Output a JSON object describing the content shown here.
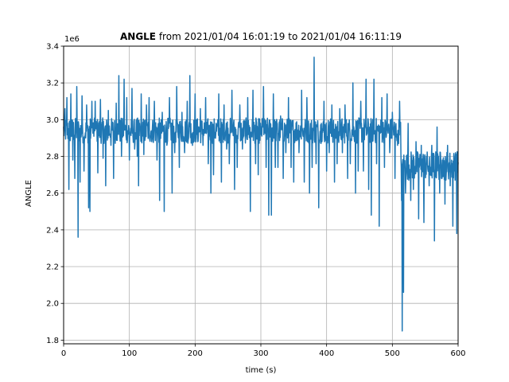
{
  "chart_data": {
    "type": "line",
    "title_bold": "ANGLE",
    "title_rest": " from 2021/01/04 16:01:19 to 2021/01/04 16:11:19",
    "xlabel": "time (s)",
    "ylabel": "ANGLE",
    "y_offset_text": "1e6",
    "xlim": [
      0,
      600
    ],
    "ylim": [
      1.78,
      3.4
    ],
    "xticks": [
      0,
      100,
      200,
      300,
      400,
      500,
      600
    ],
    "yticks": [
      1.8,
      2.0,
      2.2,
      2.4,
      2.6,
      2.8,
      3.0,
      3.2,
      3.4
    ],
    "xtick_labels": [
      "0",
      "100",
      "200",
      "300",
      "400",
      "500",
      "600"
    ],
    "ytick_labels": [
      "1.8",
      "2.0",
      "2.2",
      "2.4",
      "2.6",
      "2.8",
      "3.0",
      "3.2",
      "3.4"
    ],
    "grid": true,
    "color": "#1f77b4",
    "series": [
      {
        "regime": [
          {
            "x_start": 0,
            "x_end": 513,
            "center": 2.94,
            "half_band": 0.07
          },
          {
            "x_start": 513,
            "x_end": 600,
            "center": 2.75,
            "half_band": 0.08
          }
        ],
        "spikes": [
          {
            "x": 2,
            "y": 3.06
          },
          {
            "x": 5,
            "y": 3.12
          },
          {
            "x": 8,
            "y": 2.62
          },
          {
            "x": 11,
            "y": 3.14
          },
          {
            "x": 14,
            "y": 2.78
          },
          {
            "x": 17,
            "y": 2.68
          },
          {
            "x": 20,
            "y": 3.18
          },
          {
            "x": 22,
            "y": 2.36
          },
          {
            "x": 25,
            "y": 2.66
          },
          {
            "x": 28,
            "y": 3.13
          },
          {
            "x": 31,
            "y": 2.72
          },
          {
            "x": 35,
            "y": 3.08
          },
          {
            "x": 38,
            "y": 2.52
          },
          {
            "x": 40,
            "y": 2.5
          },
          {
            "x": 43,
            "y": 3.1
          },
          {
            "x": 48,
            "y": 3.1
          },
          {
            "x": 52,
            "y": 2.71
          },
          {
            "x": 56,
            "y": 3.11
          },
          {
            "x": 60,
            "y": 2.79
          },
          {
            "x": 64,
            "y": 2.64
          },
          {
            "x": 68,
            "y": 3.05
          },
          {
            "x": 72,
            "y": 2.86
          },
          {
            "x": 76,
            "y": 2.68
          },
          {
            "x": 80,
            "y": 3.09
          },
          {
            "x": 84,
            "y": 3.24
          },
          {
            "x": 88,
            "y": 2.8
          },
          {
            "x": 92,
            "y": 3.22
          },
          {
            "x": 96,
            "y": 3.12
          },
          {
            "x": 100,
            "y": 2.78
          },
          {
            "x": 104,
            "y": 3.17
          },
          {
            "x": 108,
            "y": 2.84
          },
          {
            "x": 112,
            "y": 2.8
          },
          {
            "x": 114,
            "y": 2.64
          },
          {
            "x": 118,
            "y": 3.14
          },
          {
            "x": 122,
            "y": 2.81
          },
          {
            "x": 126,
            "y": 3.08
          },
          {
            "x": 130,
            "y": 3.12
          },
          {
            "x": 134,
            "y": 2.88
          },
          {
            "x": 138,
            "y": 3.1
          },
          {
            "x": 142,
            "y": 2.78
          },
          {
            "x": 146,
            "y": 2.56
          },
          {
            "x": 150,
            "y": 3.04
          },
          {
            "x": 153,
            "y": 2.5
          },
          {
            "x": 157,
            "y": 2.86
          },
          {
            "x": 161,
            "y": 3.12
          },
          {
            "x": 165,
            "y": 2.6
          },
          {
            "x": 169,
            "y": 2.82
          },
          {
            "x": 172,
            "y": 3.18
          },
          {
            "x": 176,
            "y": 2.74
          },
          {
            "x": 180,
            "y": 3.04
          },
          {
            "x": 184,
            "y": 2.82
          },
          {
            "x": 188,
            "y": 3.1
          },
          {
            "x": 192,
            "y": 3.24
          },
          {
            "x": 196,
            "y": 2.86
          },
          {
            "x": 200,
            "y": 3.14
          },
          {
            "x": 204,
            "y": 2.88
          },
          {
            "x": 208,
            "y": 3.06
          },
          {
            "x": 212,
            "y": 2.86
          },
          {
            "x": 216,
            "y": 3.12
          },
          {
            "x": 220,
            "y": 2.76
          },
          {
            "x": 224,
            "y": 2.6
          },
          {
            "x": 228,
            "y": 2.7
          },
          {
            "x": 232,
            "y": 2.98
          },
          {
            "x": 236,
            "y": 3.14
          },
          {
            "x": 240,
            "y": 2.66
          },
          {
            "x": 244,
            "y": 3.08
          },
          {
            "x": 248,
            "y": 2.84
          },
          {
            "x": 252,
            "y": 2.76
          },
          {
            "x": 256,
            "y": 3.16
          },
          {
            "x": 260,
            "y": 2.62
          },
          {
            "x": 264,
            "y": 2.74
          },
          {
            "x": 268,
            "y": 3.08
          },
          {
            "x": 272,
            "y": 2.84
          },
          {
            "x": 276,
            "y": 2.98
          },
          {
            "x": 280,
            "y": 3.12
          },
          {
            "x": 284,
            "y": 2.5
          },
          {
            "x": 288,
            "y": 3.16
          },
          {
            "x": 292,
            "y": 2.76
          },
          {
            "x": 296,
            "y": 2.7
          },
          {
            "x": 300,
            "y": 2.92
          },
          {
            "x": 304,
            "y": 3.18
          },
          {
            "x": 308,
            "y": 2.74
          },
          {
            "x": 312,
            "y": 2.48
          },
          {
            "x": 316,
            "y": 2.48
          },
          {
            "x": 319,
            "y": 3.14
          },
          {
            "x": 322,
            "y": 2.74
          },
          {
            "x": 326,
            "y": 2.74
          },
          {
            "x": 330,
            "y": 3.02
          },
          {
            "x": 334,
            "y": 2.68
          },
          {
            "x": 338,
            "y": 2.82
          },
          {
            "x": 342,
            "y": 3.12
          },
          {
            "x": 346,
            "y": 2.74
          },
          {
            "x": 350,
            "y": 2.66
          },
          {
            "x": 354,
            "y": 2.98
          },
          {
            "x": 358,
            "y": 2.82
          },
          {
            "x": 362,
            "y": 3.16
          },
          {
            "x": 366,
            "y": 2.66
          },
          {
            "x": 370,
            "y": 3.12
          },
          {
            "x": 374,
            "y": 2.6
          },
          {
            "x": 378,
            "y": 2.74
          },
          {
            "x": 381,
            "y": 3.34
          },
          {
            "x": 384,
            "y": 2.76
          },
          {
            "x": 388,
            "y": 2.52
          },
          {
            "x": 392,
            "y": 2.98
          },
          {
            "x": 396,
            "y": 3.1
          },
          {
            "x": 400,
            "y": 2.72
          },
          {
            "x": 404,
            "y": 2.82
          },
          {
            "x": 408,
            "y": 3.08
          },
          {
            "x": 412,
            "y": 2.66
          },
          {
            "x": 416,
            "y": 2.76
          },
          {
            "x": 420,
            "y": 3.06
          },
          {
            "x": 424,
            "y": 2.82
          },
          {
            "x": 428,
            "y": 3.08
          },
          {
            "x": 432,
            "y": 2.68
          },
          {
            "x": 436,
            "y": 2.76
          },
          {
            "x": 440,
            "y": 3.2
          },
          {
            "x": 444,
            "y": 2.6
          },
          {
            "x": 448,
            "y": 2.72
          },
          {
            "x": 452,
            "y": 3.1
          },
          {
            "x": 456,
            "y": 2.72
          },
          {
            "x": 460,
            "y": 3.22
          },
          {
            "x": 464,
            "y": 2.62
          },
          {
            "x": 468,
            "y": 2.48
          },
          {
            "x": 472,
            "y": 3.22
          },
          {
            "x": 476,
            "y": 2.76
          },
          {
            "x": 480,
            "y": 2.42
          },
          {
            "x": 484,
            "y": 3.12
          },
          {
            "x": 488,
            "y": 2.74
          },
          {
            "x": 492,
            "y": 3.14
          },
          {
            "x": 496,
            "y": 2.82
          },
          {
            "x": 500,
            "y": 3.04
          },
          {
            "x": 504,
            "y": 2.68
          },
          {
            "x": 508,
            "y": 2.86
          },
          {
            "x": 511,
            "y": 3.1
          },
          {
            "x": 514,
            "y": 2.56
          },
          {
            "x": 515,
            "y": 1.85
          },
          {
            "x": 517,
            "y": 2.06
          },
          {
            "x": 520,
            "y": 2.6
          },
          {
            "x": 524,
            "y": 2.98
          },
          {
            "x": 528,
            "y": 2.56
          },
          {
            "x": 532,
            "y": 2.62
          },
          {
            "x": 536,
            "y": 2.88
          },
          {
            "x": 540,
            "y": 2.46
          },
          {
            "x": 544,
            "y": 2.86
          },
          {
            "x": 548,
            "y": 2.44
          },
          {
            "x": 552,
            "y": 2.8
          },
          {
            "x": 556,
            "y": 2.64
          },
          {
            "x": 560,
            "y": 2.86
          },
          {
            "x": 564,
            "y": 2.34
          },
          {
            "x": 568,
            "y": 2.96
          },
          {
            "x": 572,
            "y": 2.6
          },
          {
            "x": 576,
            "y": 2.78
          },
          {
            "x": 580,
            "y": 2.54
          },
          {
            "x": 584,
            "y": 2.86
          },
          {
            "x": 588,
            "y": 2.64
          },
          {
            "x": 592,
            "y": 2.42
          },
          {
            "x": 596,
            "y": 2.82
          },
          {
            "x": 598,
            "y": 2.38
          }
        ]
      }
    ]
  }
}
